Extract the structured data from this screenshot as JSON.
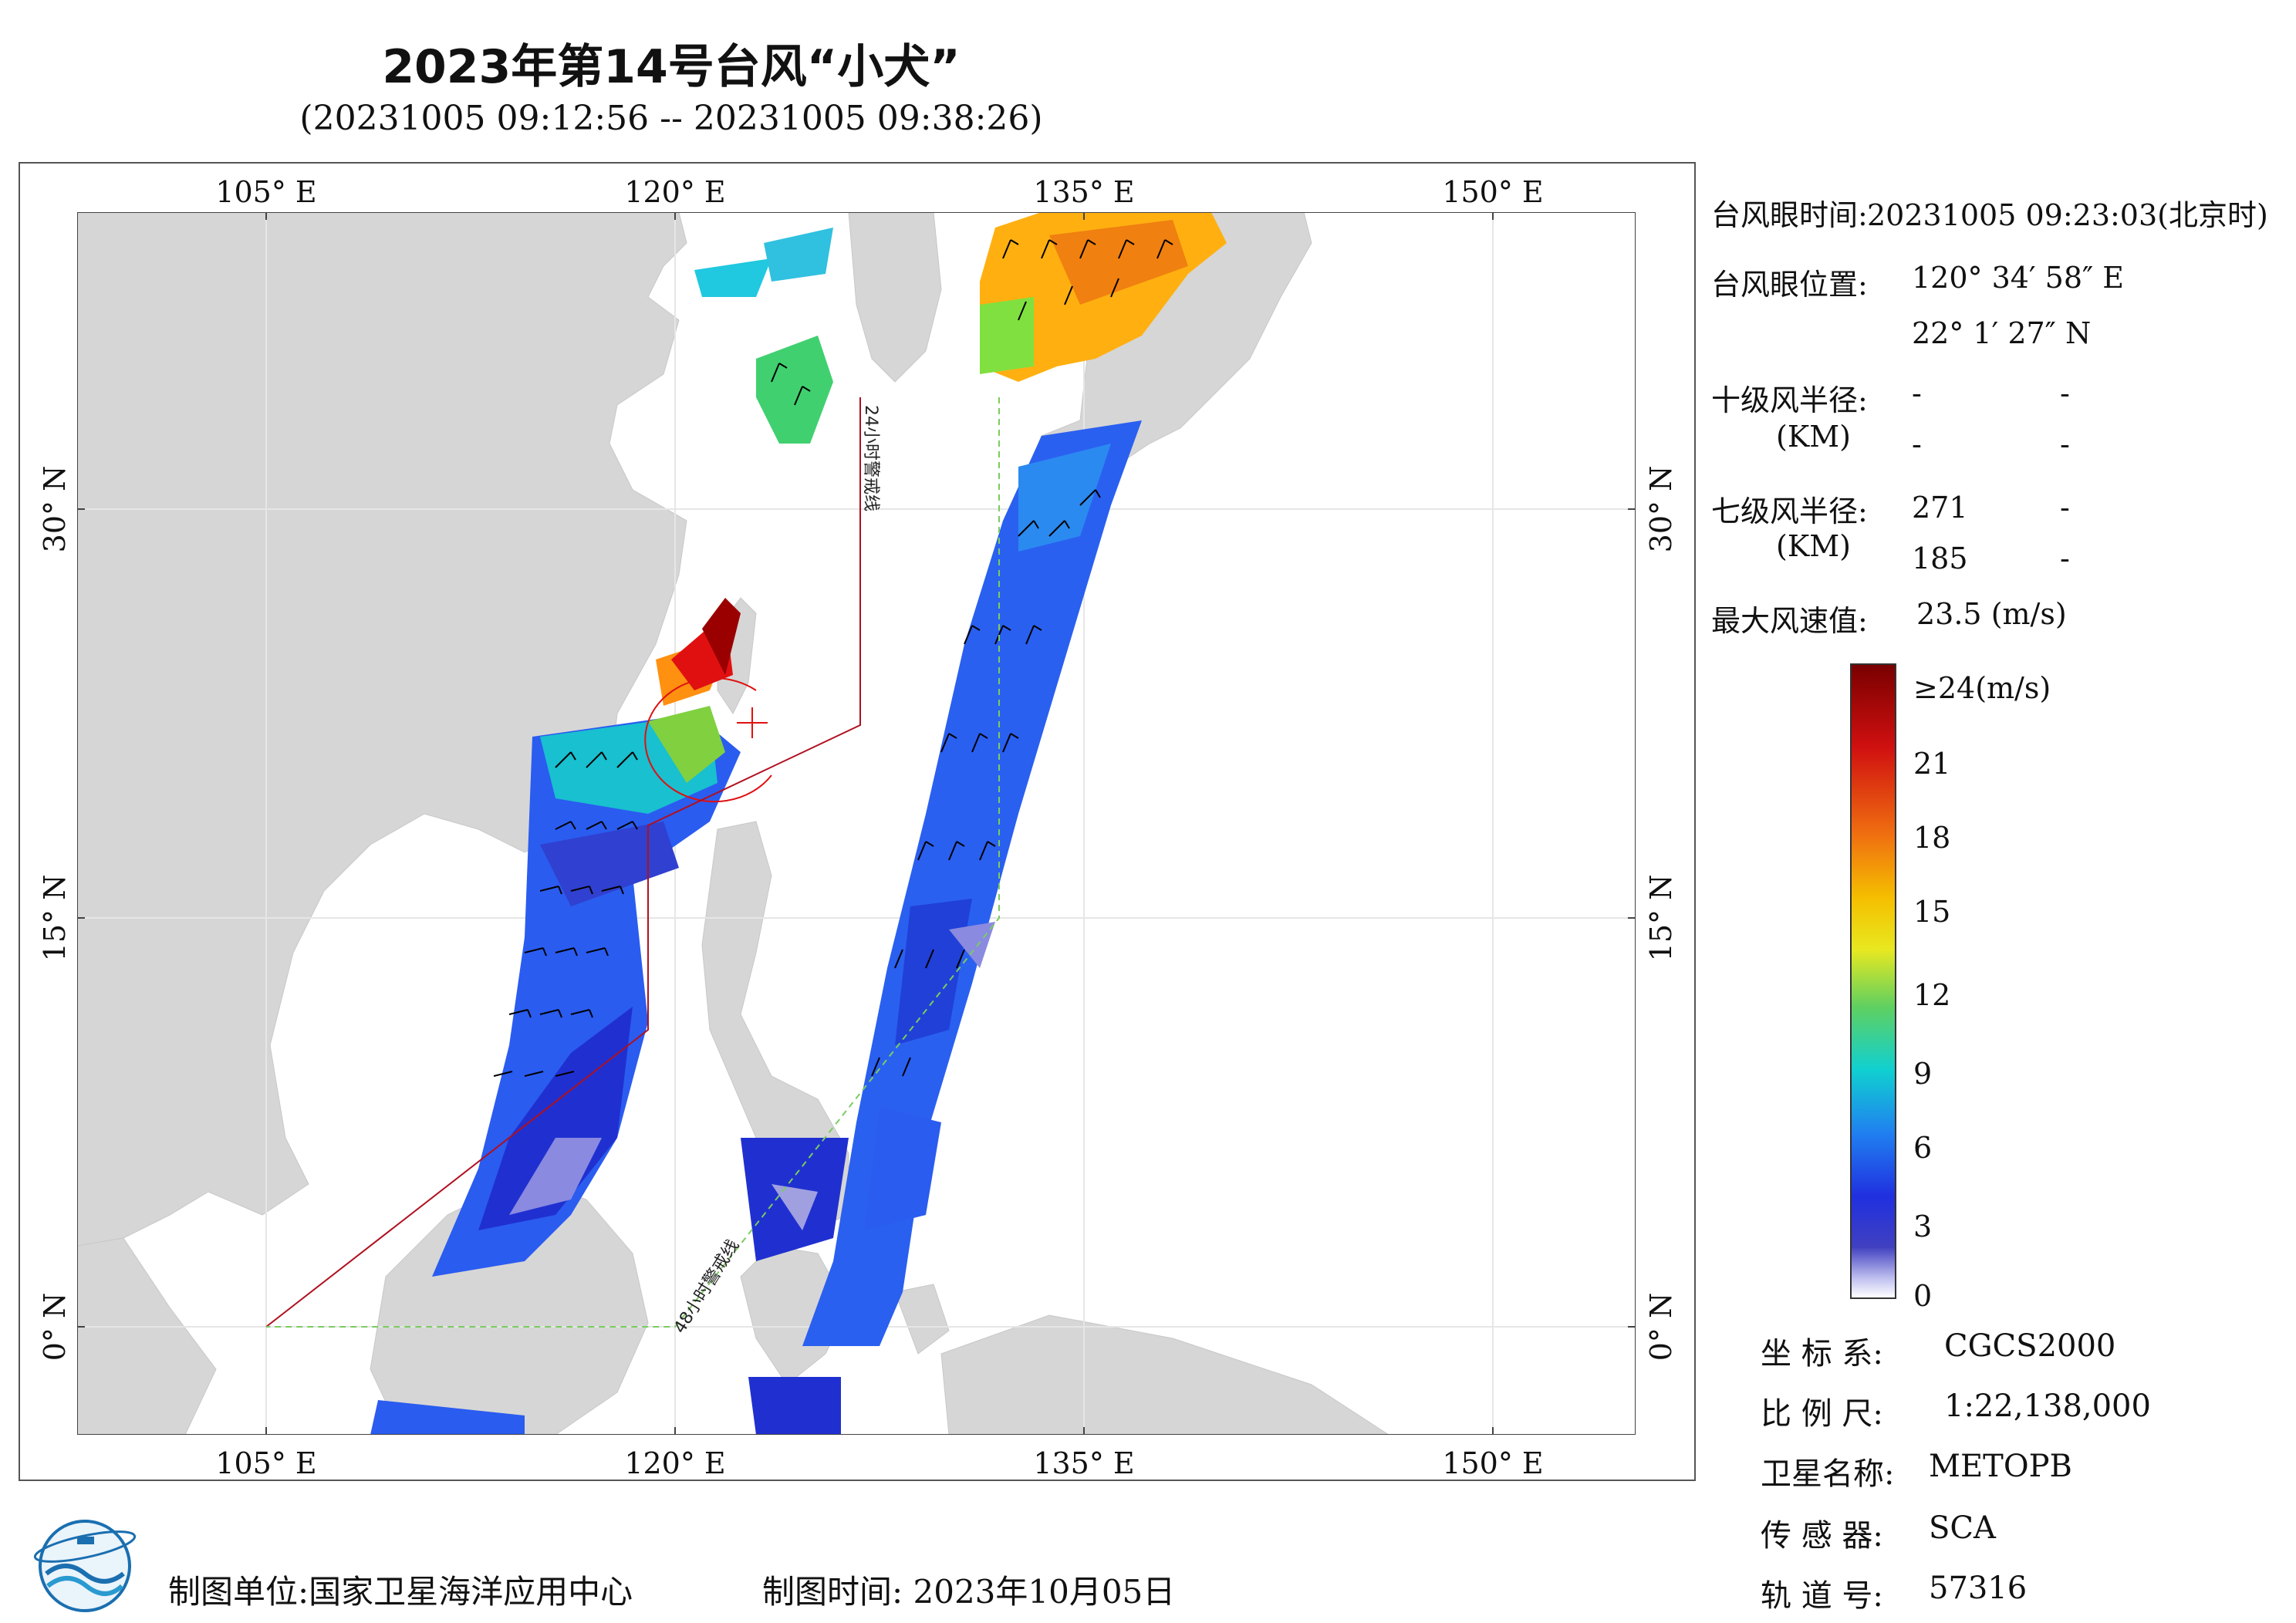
{
  "title": "2023年第14号台风“小犬”",
  "subtitle": "(20231005 09:12:56 -- 20231005 09:38:26)",
  "map": {
    "lon_labels_top": [
      "105° E",
      "120° E",
      "135° E",
      "150° E"
    ],
    "lon_labels_bottom": [
      "105° E",
      "120° E",
      "135° E",
      "150° E"
    ],
    "lat_labels_left": [
      "30° N",
      "15° N",
      "0° N"
    ],
    "lat_labels_right": [
      "30° N",
      "15° N",
      "0° N"
    ],
    "warn_24h": "24小时警戒线",
    "warn_48h": "48小时警戒线",
    "colors": {
      "land": "#d6d6d6",
      "ocean": "#ffffff",
      "warn24": "#b01020",
      "warn48": "#7acc60"
    }
  },
  "info": {
    "eye_time_label": "台风眼时间:",
    "eye_time_value": "20231005 09:23:03(北京时)",
    "eye_pos_label": "台风眼位置:",
    "eye_lon": "120° 34′ 58″ E",
    "eye_lat": "22° 1′ 27″ N",
    "r10_label": "十级风半径:",
    "r10_unit": "(KM)",
    "r10_v1": "-",
    "r10_v2": "-",
    "r10_v3": "-",
    "r10_v4": "-",
    "r7_label": "七级风半径:",
    "r7_unit": "(KM)",
    "r7_v1": "271",
    "r7_v2": "-",
    "r7_v3": "185",
    "r7_v4": "-",
    "max_label": "最大风速值:",
    "max_value": "23.5  (m/s)"
  },
  "colorbar": {
    "labels": [
      "≥24(m/s)",
      "21",
      "18",
      "15",
      "12",
      "9",
      "6",
      "3",
      "0"
    ],
    "stops": [
      "#7a0000",
      "#d01010",
      "#f07010",
      "#f5c000",
      "#e8e820",
      "#60d060",
      "#10d0d0",
      "#2080f0",
      "#2030e0",
      "#4040c0",
      "#c0c0f0",
      "#ffffff"
    ]
  },
  "meta": {
    "coord_label": "坐 标 系:",
    "coord_value": "CGCS2000",
    "scale_label": "比 例 尺:",
    "scale_value": "1:22,138,000",
    "sat_label": "卫星名称:",
    "sat_value": "METOPB",
    "sensor_label": "传 感 器:",
    "sensor_value": "SCA",
    "orbit_label": "轨 道 号:",
    "orbit_value": "57316"
  },
  "footer": {
    "unit": "制图单位:国家卫星海洋应用中心",
    "time": "制图时间:  2023年10月05日"
  }
}
